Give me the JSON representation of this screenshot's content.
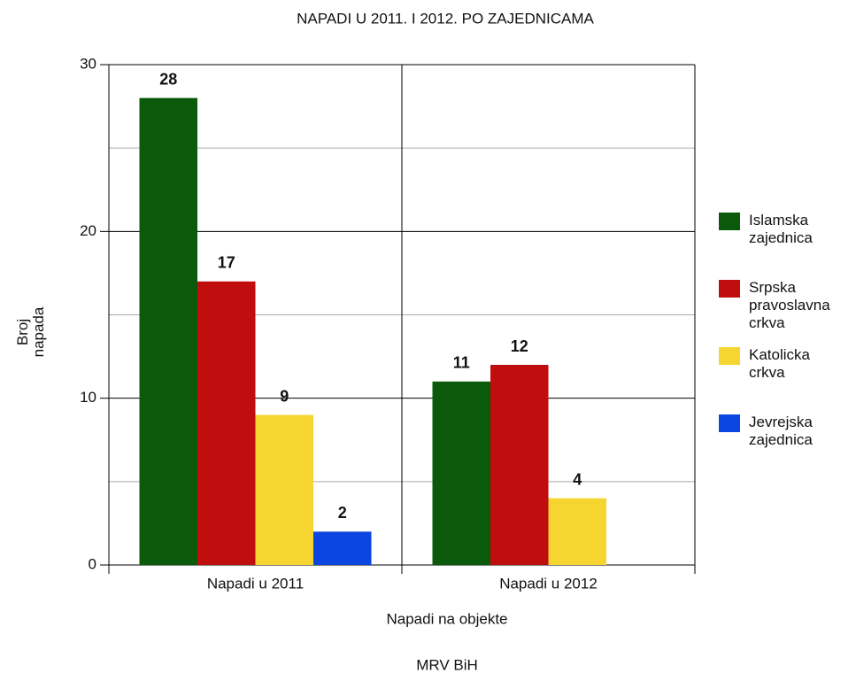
{
  "chart_data": {
    "type": "bar",
    "title": "NAPADI U 2011. I 2012. PO ZAJEDNICAMA",
    "y_label": "Broj napada",
    "x_label": "Napadi na objekte",
    "source": "MRV BiH",
    "categories": [
      "Napadi u 2011",
      "Napadi u 2012"
    ],
    "series": [
      {
        "name": "Islamska zajednica",
        "color": "#0b5a0b",
        "values": [
          28,
          11
        ]
      },
      {
        "name": "Srpska pravoslavna crkva",
        "color": "#c00d0d",
        "values": [
          17,
          12
        ]
      },
      {
        "name": "Katolicka crkva",
        "color": "#f7d531",
        "values": [
          9,
          4
        ]
      },
      {
        "name": "Jevrejska zajednica",
        "color": "#0c46e0",
        "values": [
          2,
          null
        ]
      }
    ],
    "ylim": [
      0,
      30
    ],
    "yticks": [
      0,
      10,
      20,
      30
    ],
    "minor_yticks": [
      5,
      15,
      25
    ],
    "grid": true,
    "legend": "right"
  }
}
